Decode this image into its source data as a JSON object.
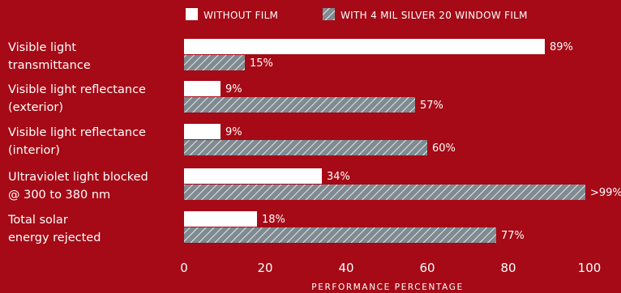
{
  "colors": {
    "background": "#a50a16",
    "without_film": "#ffffff",
    "with_film_fill": "#7f8a91",
    "with_film_hatch": "#ffffff",
    "text": "#ffffff"
  },
  "chart_data": {
    "type": "bar",
    "orientation": "horizontal",
    "title": "",
    "xlabel": "PERFORMANCE PERCENTAGE",
    "ylabel": "",
    "xlim": [
      0,
      100
    ],
    "xticks": [
      0,
      20,
      40,
      60,
      80,
      100
    ],
    "grid": false,
    "legend_position": "top",
    "categories": [
      [
        "Visible light",
        "transmittance"
      ],
      [
        "Visible light reflectance",
        "(exterior)"
      ],
      [
        "Visible light reflectance",
        "(interior)"
      ],
      [
        "Ultraviolet light blocked",
        "@ 300 to 380 nm"
      ],
      [
        "Total solar",
        "energy rejected"
      ]
    ],
    "series": [
      {
        "name": "WITHOUT FILM",
        "style": "solid-white",
        "values": [
          89,
          9,
          9,
          34,
          18
        ],
        "labels": [
          "89%",
          "9%",
          "9%",
          "34%",
          "18%"
        ]
      },
      {
        "name": "WITH 4 MIL SILVER 20 WINDOW FILM",
        "style": "hatched-gray",
        "values": [
          15,
          57,
          60,
          99,
          77
        ],
        "labels": [
          "15%",
          "57%",
          "60%",
          ">99%",
          "77%"
        ]
      }
    ]
  }
}
